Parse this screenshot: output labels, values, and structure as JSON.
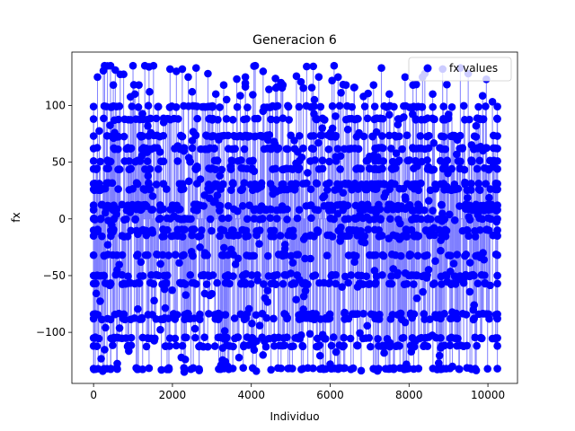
{
  "chart_data": {
    "type": "scatter",
    "style": "stem",
    "title": "Generacion 6",
    "xlabel": "Individuo",
    "ylabel": "fx",
    "xlim": [
      -550,
      10750
    ],
    "ylim": [
      -145,
      147
    ],
    "xticks": [
      0,
      2000,
      4000,
      6000,
      8000,
      10000
    ],
    "yticks": [
      -100,
      -50,
      0,
      50,
      100
    ],
    "grid": false,
    "legend_position": "top-right",
    "series": [
      {
        "name": "fx values",
        "marker_color": "#0000ff",
        "stem_color": "#7f7fff",
        "n_points": 10240,
        "dense_levels": [
          -132,
          -112,
          -105,
          -88,
          -84,
          -57,
          -50,
          -32,
          -15,
          -10,
          0,
          8,
          12,
          26,
          31,
          44,
          51,
          62,
          73,
          88,
          99
        ],
        "sparse_range": [
          -135,
          135
        ],
        "sample_points": [
          {
            "x": 100,
            "y": 125
          },
          {
            "x": 280,
            "y": 135
          },
          {
            "x": 430,
            "y": 135
          },
          {
            "x": 500,
            "y": 118
          },
          {
            "x": 1000,
            "y": 135
          },
          {
            "x": 1050,
            "y": 110
          },
          {
            "x": 1150,
            "y": 118
          },
          {
            "x": 1300,
            "y": 135
          },
          {
            "x": 1420,
            "y": 112
          },
          {
            "x": 1520,
            "y": 135
          },
          {
            "x": 1940,
            "y": 132
          },
          {
            "x": 2100,
            "y": 130
          },
          {
            "x": 2250,
            "y": 132
          },
          {
            "x": 2400,
            "y": 125
          },
          {
            "x": 2500,
            "y": 112
          },
          {
            "x": 2600,
            "y": 133
          },
          {
            "x": 2900,
            "y": 128
          },
          {
            "x": 3100,
            "y": 110
          },
          {
            "x": 3300,
            "y": 118
          },
          {
            "x": 3850,
            "y": 125
          },
          {
            "x": 4100,
            "y": 135
          },
          {
            "x": 4300,
            "y": 130
          },
          {
            "x": 4800,
            "y": 118
          },
          {
            "x": 5600,
            "y": 105
          },
          {
            "x": 6100,
            "y": 135
          },
          {
            "x": 6200,
            "y": 125
          },
          {
            "x": 6400,
            "y": 118
          },
          {
            "x": 7100,
            "y": 118
          },
          {
            "x": 7300,
            "y": 133
          },
          {
            "x": 7500,
            "y": 110
          },
          {
            "x": 7900,
            "y": 125
          },
          {
            "x": 8100,
            "y": 118
          },
          {
            "x": 8400,
            "y": 128
          },
          {
            "x": 8600,
            "y": 110
          },
          {
            "x": 9300,
            "y": 133
          },
          {
            "x": 9500,
            "y": 128
          },
          {
            "x": 2300,
            "y": -135
          },
          {
            "x": 3400,
            "y": -130
          },
          {
            "x": 4500,
            "y": -133
          },
          {
            "x": 6000,
            "y": -128
          },
          {
            "x": 7200,
            "y": -134
          },
          {
            "x": 9100,
            "y": -130
          },
          {
            "x": 600,
            "y": -45
          },
          {
            "x": 1200,
            "y": -38
          },
          {
            "x": 1800,
            "y": -62
          },
          {
            "x": 2700,
            "y": -25
          },
          {
            "x": 3000,
            "y": -66
          },
          {
            "x": 3600,
            "y": -40
          },
          {
            "x": 4200,
            "y": -22
          },
          {
            "x": 5000,
            "y": -48
          },
          {
            "x": 5500,
            "y": -35
          },
          {
            "x": 6300,
            "y": -60
          },
          {
            "x": 6800,
            "y": -20
          },
          {
            "x": 7600,
            "y": -44
          },
          {
            "x": 8200,
            "y": -70
          },
          {
            "x": 8800,
            "y": -28
          },
          {
            "x": 9400,
            "y": -52
          },
          {
            "x": 9900,
            "y": -36
          },
          {
            "x": 1500,
            "y": 20
          },
          {
            "x": 3200,
            "y": 38
          },
          {
            "x": 4600,
            "y": 66
          },
          {
            "x": 5800,
            "y": 80
          },
          {
            "x": 7000,
            "y": 55
          },
          {
            "x": 8500,
            "y": 16
          },
          {
            "x": 9700,
            "y": 82
          }
        ]
      }
    ]
  }
}
